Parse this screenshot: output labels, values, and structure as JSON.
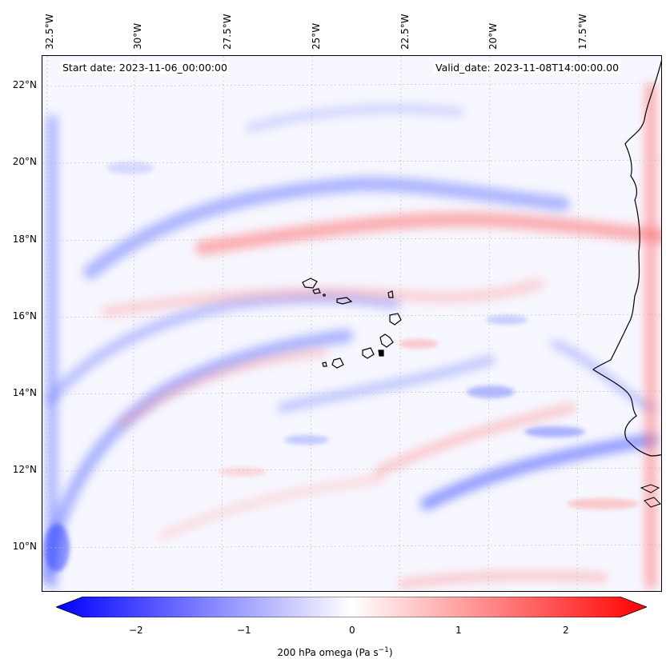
{
  "map": {
    "start_label": "Start date: 2023-11-06_00:00:00",
    "valid_label": "Valid_date: 2023-11-08T14:00:00.00",
    "lon_labels": [
      "32.5°W",
      "30°W",
      "27.5°W",
      "25°W",
      "22.5°W",
      "20°W",
      "17.5°W"
    ],
    "lat_labels": [
      "22°N",
      "20°N",
      "18°N",
      "16°N",
      "14°N",
      "12°N",
      "10°N"
    ],
    "extent": {
      "lon_min": -32.6,
      "lon_max": -15.5,
      "lat_min": 8.9,
      "lat_max": 22.8
    },
    "field": "200 hPa omega"
  },
  "colorbar": {
    "min": -2.7,
    "max": 2.7,
    "ticks": [
      "−2",
      "−1",
      "0",
      "1",
      "2"
    ],
    "label": "200 hPa omega (Pa s",
    "label_sup": "−1",
    "label_end": ")",
    "neg_color": "#0000ff",
    "mid_color": "#ffffff",
    "pos_color": "#ff0000"
  }
}
